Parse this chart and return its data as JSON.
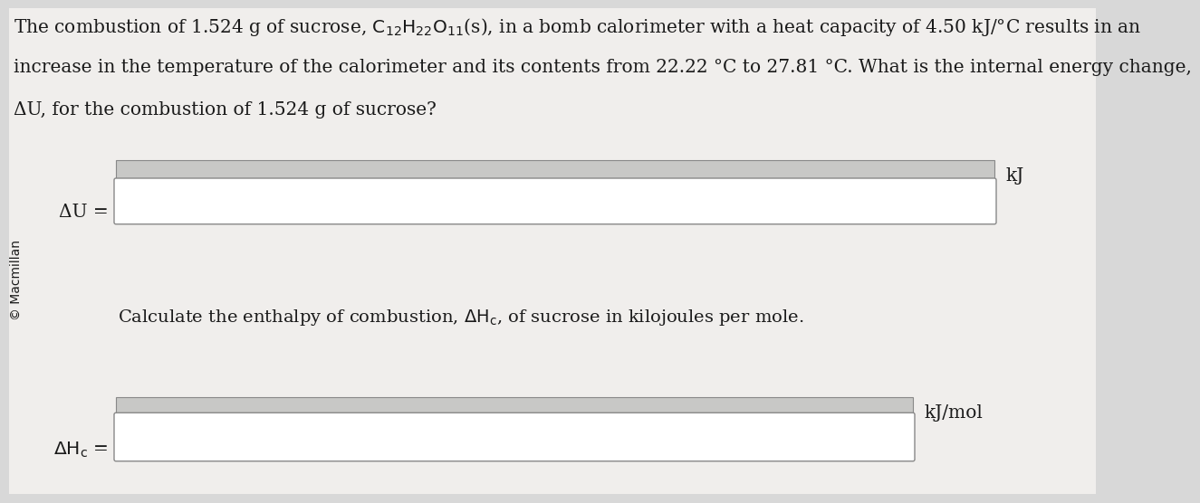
{
  "bg_color": "#d8d8d8",
  "page_color": "#f0eeec",
  "text_color": "#1a1a1a",
  "line1": "The combustion of 1.524 g of sucrose, C",
  "line1_sub12": "12",
  "line1_mid": "H",
  "line1_sub22": "22",
  "line1_mid2": "O",
  "line1_sub11": "11",
  "line1_end": "(s), in a bomb calorimeter with a heat capacity of 4.50 kJ/°C results in an",
  "line2": "increase in the temperature of the calorimeter and its contents from 22.22 °C to 27.81 °C. What is the internal energy change,",
  "line3": "ΔU, for the combustion of 1.524 g of sucrose?",
  "delta_u_label": "ΔU =",
  "unit_kj": "kJ",
  "calc_line": "Calculate the enthalpy of combustion, ΔH",
  "calc_line_sub": "c",
  "calc_line_end": ", of sucrose in kilojoules per mole.",
  "delta_h_label": "ΔH",
  "delta_h_sub": "c",
  "delta_h_end": " =",
  "unit_kjmol": "kJ/mol",
  "copyright": "© Macmillan",
  "fontsize_main": 14.5,
  "fontsize_label": 14.5,
  "fontsize_unit": 14.5,
  "fontsize_small": 10
}
